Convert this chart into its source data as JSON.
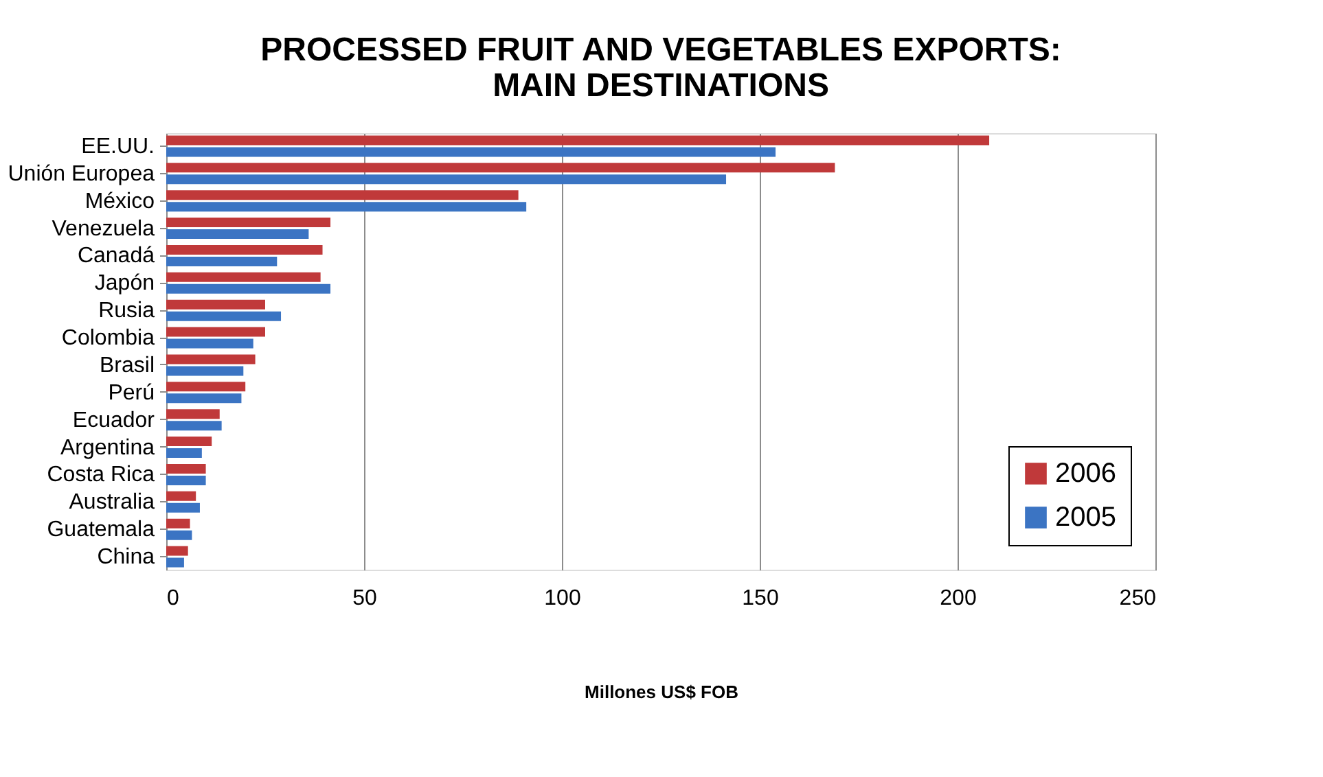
{
  "chart_data": {
    "type": "bar",
    "orientation": "horizontal",
    "title": [
      "PROCESSED FRUIT AND VEGETABLES EXPORTS:",
      "MAIN DESTINATIONS"
    ],
    "xlabel": "Millones US$ FOB",
    "categories": [
      "EE.UU.",
      "Unión Europea",
      "México",
      "Venezuela",
      "Canadá",
      "Japón",
      "Rusia",
      "Colombia",
      "Brasil",
      "Perú",
      "Ecuador",
      "Argentina",
      "Costa Rica",
      "Australia",
      "Guatemala",
      "China"
    ],
    "series": [
      {
        "name": "2006",
        "color": "#c0393a",
        "values": [
          208,
          169,
          89,
          41.5,
          39.5,
          39,
          25,
          25,
          22.5,
          20,
          13.5,
          11.5,
          10,
          7.5,
          6,
          5.5
        ]
      },
      {
        "name": "2005",
        "color": "#3b74c3",
        "values": [
          154,
          141.5,
          91,
          36,
          28,
          41.5,
          29,
          22,
          19.5,
          19,
          14,
          9,
          10,
          8.5,
          6.5,
          4.5
        ]
      }
    ],
    "xlim": [
      0,
      250
    ],
    "xticks": [
      0,
      50,
      100,
      150,
      200,
      250
    ],
    "grid": "x",
    "legend": "bottom right"
  }
}
